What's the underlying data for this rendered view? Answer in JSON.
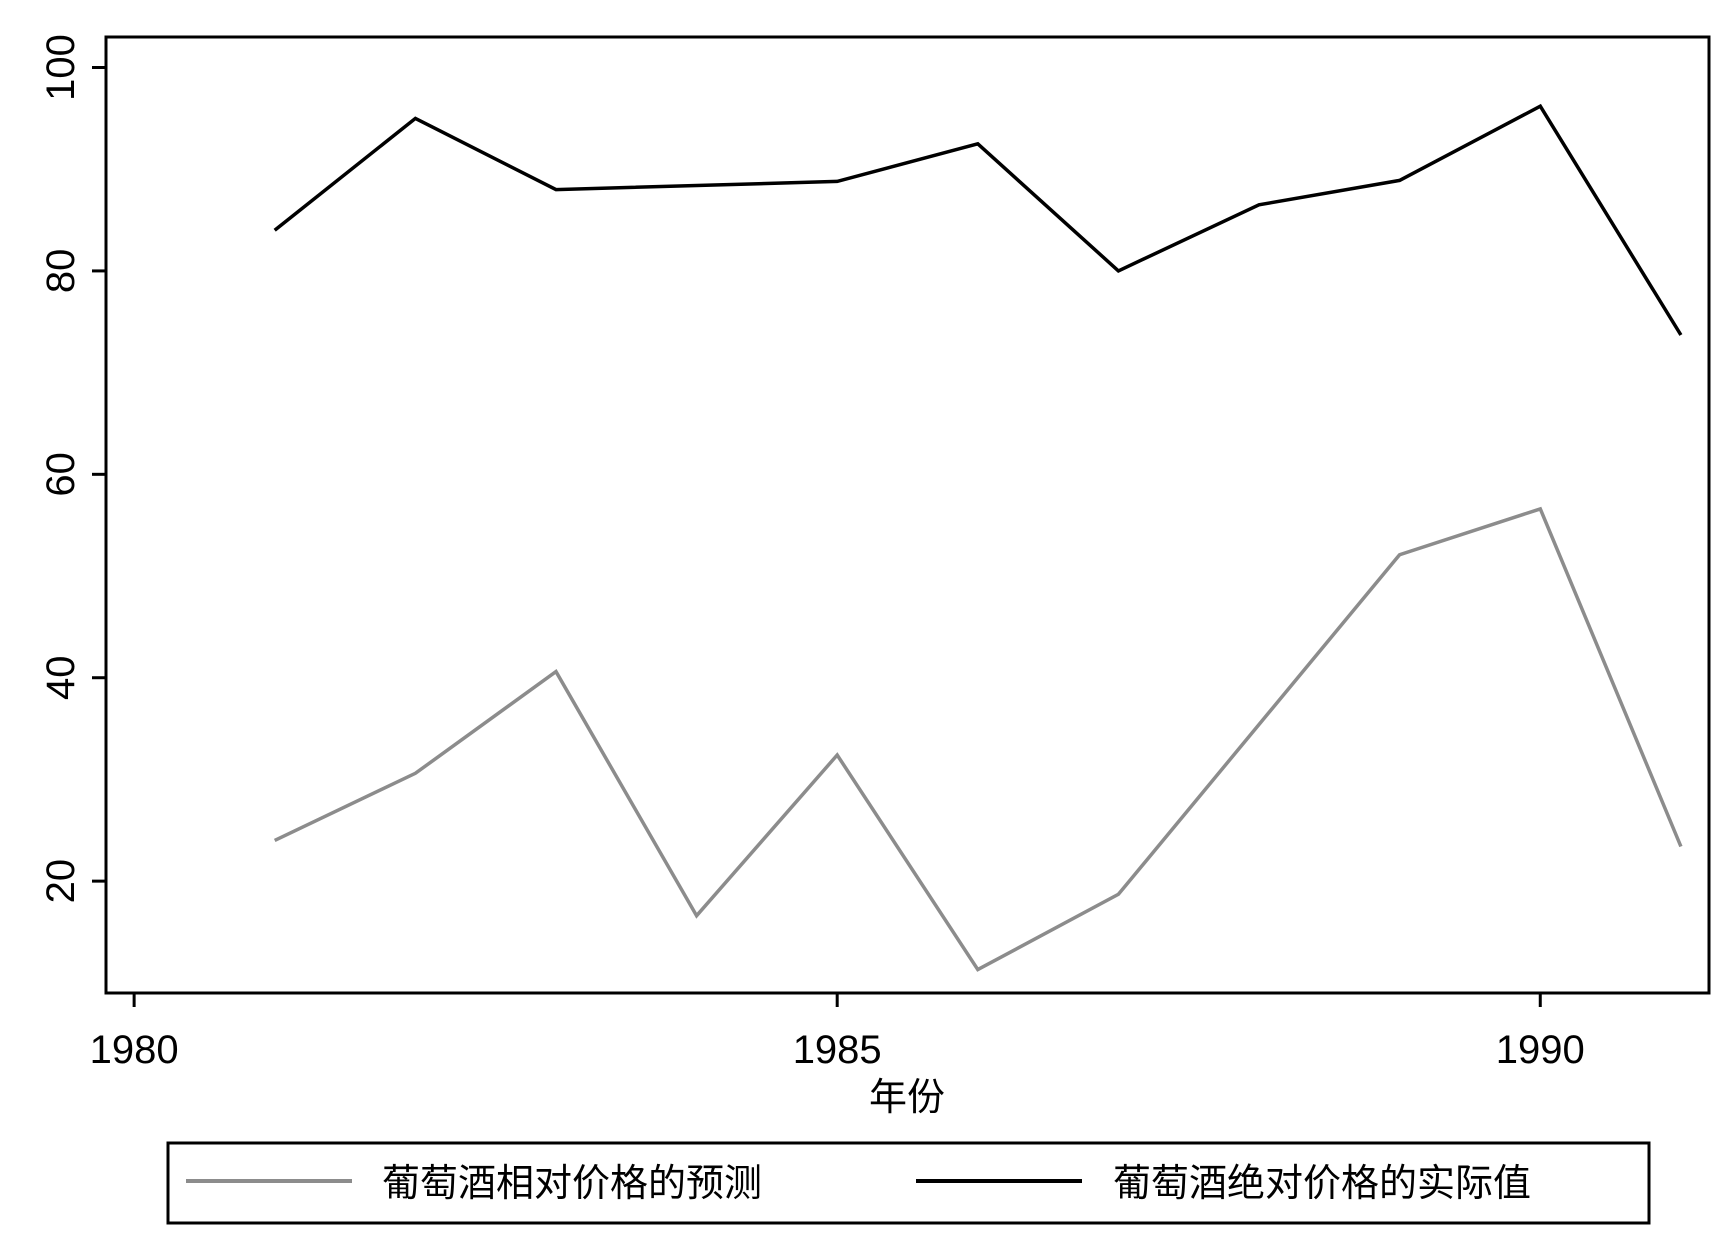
{
  "chart_data": {
    "type": "line",
    "xlabel": "年份",
    "ylabel": "",
    "xlim": [
      1979.8,
      1991.2
    ],
    "ylim": [
      9,
      103
    ],
    "xticks": [
      1980,
      1985,
      1990
    ],
    "yticks": [
      20,
      40,
      60,
      80,
      100
    ],
    "grid": false,
    "legend_position": "bottom",
    "series": [
      {
        "name": "葡萄酒相对价格的预测",
        "color": "#8c8c8c",
        "x": [
          1981,
          1982,
          1983,
          1984,
          1985,
          1986,
          1987,
          1988,
          1989,
          1990,
          1991
        ],
        "y": [
          24,
          30.6,
          40.6,
          16.6,
          32.4,
          11.3,
          18.7,
          35.4,
          52.1,
          56.6,
          23.4
        ]
      },
      {
        "name": "葡萄酒绝对价格的实际值",
        "color": "#000000",
        "x": [
          1981,
          1982,
          1983,
          1985,
          1986,
          1987,
          1988,
          1989,
          1990,
          1991
        ],
        "y": [
          84,
          95,
          88,
          88.8,
          92.5,
          80,
          86.5,
          88.9,
          96.2,
          73.7
        ]
      }
    ]
  }
}
